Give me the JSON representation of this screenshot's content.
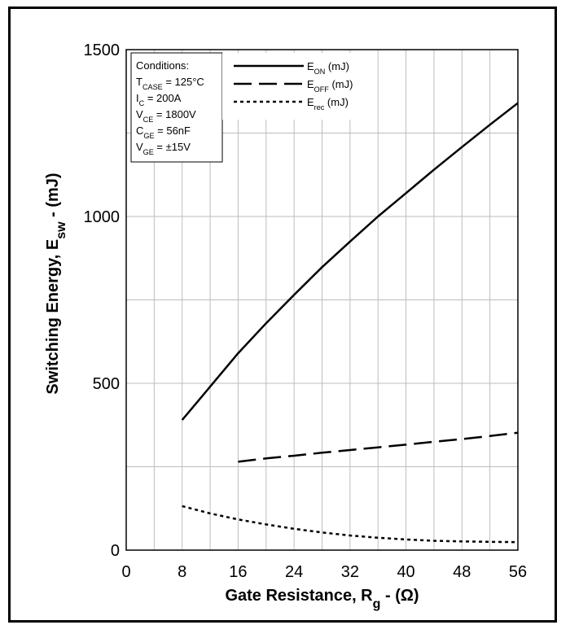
{
  "chart_data": {
    "type": "line",
    "title": "",
    "xlabel": "Gate Resistance, R",
    "xlabel_sub": "g",
    "xlabel_tail": " - (Ω)",
    "ylabel": "Switching Energy, E",
    "ylabel_sub": "sw",
    "ylabel_tail": " - (mJ)",
    "xlim": [
      0,
      56
    ],
    "ylim": [
      0,
      1500
    ],
    "xticks": [
      0,
      8,
      16,
      24,
      32,
      40,
      48,
      56
    ],
    "yticks": [
      0,
      500,
      1000,
      1500
    ],
    "x_minor_step": 4,
    "y_minor_step": 250,
    "grid": true,
    "legend_position": "top",
    "series": [
      {
        "name": "E",
        "name_sub": "ON",
        "name_tail": " (mJ)",
        "style": "solid",
        "color": "#000000",
        "x": [
          8,
          12,
          16,
          20,
          24,
          28,
          32,
          36,
          40,
          44,
          48,
          52,
          56
        ],
        "y": [
          390,
          490,
          590,
          680,
          765,
          848,
          925,
          1000,
          1070,
          1140,
          1208,
          1275,
          1340
        ]
      },
      {
        "name": "E",
        "name_sub": "OFF",
        "name_tail": " (mJ)",
        "style": "dashed",
        "color": "#000000",
        "x": [
          16,
          20,
          24,
          28,
          32,
          36,
          40,
          44,
          48,
          52,
          56
        ],
        "y": [
          265,
          275,
          283,
          292,
          300,
          308,
          316,
          325,
          333,
          342,
          352
        ]
      },
      {
        "name": "E",
        "name_sub": "rec",
        "name_tail": " (mJ)",
        "style": "dotted",
        "color": "#000000",
        "x": [
          8,
          12,
          16,
          20,
          24,
          28,
          32,
          36,
          40,
          44,
          48,
          52,
          56
        ],
        "y": [
          132,
          110,
          92,
          77,
          64,
          53,
          44,
          37,
          32,
          28,
          26,
          25,
          24
        ]
      }
    ],
    "conditions": {
      "heading": "Conditions:",
      "lines": [
        {
          "pre": "T",
          "sub": "CASE",
          "post": " = 125°C"
        },
        {
          "pre": "I",
          "sub": "C",
          "post": " = 200A"
        },
        {
          "pre": "V",
          "sub": "CE",
          "post": " = 1800V"
        },
        {
          "pre": "C",
          "sub": "GE",
          "post": " = 56nF"
        },
        {
          "pre": "V",
          "sub": "GE",
          "post": " = ±15V"
        }
      ]
    }
  }
}
